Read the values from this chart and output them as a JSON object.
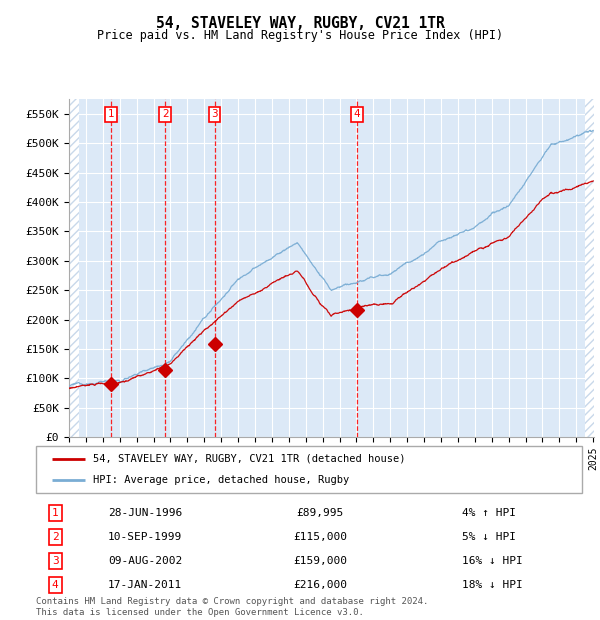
{
  "title": "54, STAVELEY WAY, RUGBY, CV21 1TR",
  "subtitle": "Price paid vs. HM Land Registry's House Price Index (HPI)",
  "bg_color": "#dce9f7",
  "grid_color": "#ffffff",
  "hatch_color": "#c8d8ea",
  "ylim": [
    0,
    575000
  ],
  "yticks": [
    0,
    50000,
    100000,
    150000,
    200000,
    250000,
    300000,
    350000,
    400000,
    450000,
    500000,
    550000
  ],
  "ytick_labels": [
    "£0",
    "£50K",
    "£100K",
    "£150K",
    "£200K",
    "£250K",
    "£300K",
    "£350K",
    "£400K",
    "£450K",
    "£500K",
    "£550K"
  ],
  "year_start": 1994,
  "year_end": 2025,
  "transactions": [
    {
      "label": "1",
      "date": "28-JUN-1996",
      "year": 1996.49,
      "price": 89995,
      "pct": "4% ↑ HPI"
    },
    {
      "label": "2",
      "date": "10-SEP-1999",
      "year": 1999.69,
      "price": 115000,
      "pct": "5% ↓ HPI"
    },
    {
      "label": "3",
      "date": "09-AUG-2002",
      "year": 2002.61,
      "price": 159000,
      "pct": "16% ↓ HPI"
    },
    {
      "label": "4",
      "date": "17-JAN-2011",
      "year": 2011.04,
      "price": 216000,
      "pct": "18% ↓ HPI"
    }
  ],
  "legend_entries": [
    "54, STAVELEY WAY, RUGBY, CV21 1TR (detached house)",
    "HPI: Average price, detached house, Rugby"
  ],
  "footer": "Contains HM Land Registry data © Crown copyright and database right 2024.\nThis data is licensed under the Open Government Licence v3.0.",
  "red_line_color": "#cc0000",
  "blue_line_color": "#7aadd4",
  "marker_color": "#cc0000"
}
